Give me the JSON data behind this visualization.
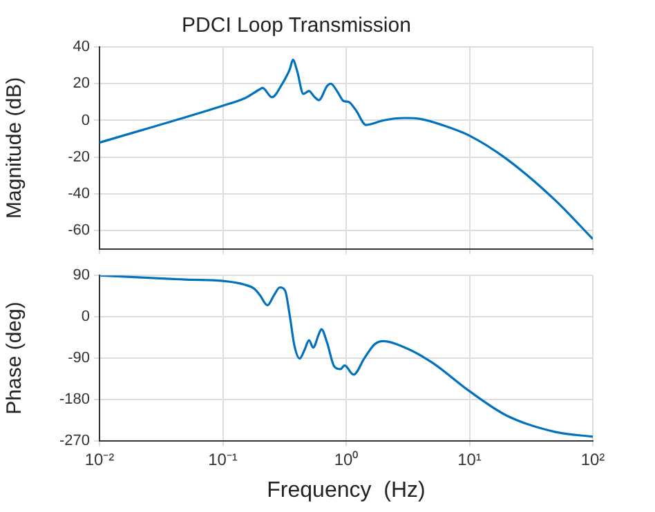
{
  "chart_data": [
    {
      "type": "line",
      "title": "PDCI Loop Transmission",
      "ylabel": "Magnitude (dB)",
      "log": "x",
      "grid": true,
      "tick_labels": "y",
      "marker": "none",
      "line_style": "solid",
      "xlim": [
        0.01,
        100
      ],
      "xticks": [
        {
          "value": 0.01,
          "label": null
        },
        {
          "value": 0.1,
          "label": null
        },
        {
          "value": 1,
          "label": null
        },
        {
          "value": 10,
          "label": null
        },
        {
          "value": 100,
          "label": null
        }
      ],
      "ylim": [
        -70,
        40
      ],
      "yticks": [
        -60,
        -40,
        -20,
        0,
        20,
        40
      ],
      "x": [
        0.01,
        0.1,
        0.15,
        0.2,
        0.21,
        0.25,
        0.3,
        0.35,
        0.37,
        0.4,
        0.45,
        0.5,
        0.55,
        0.6,
        0.7,
        0.75,
        0.85,
        0.95,
        1.05,
        1.2,
        1.45,
        1.6,
        2,
        3,
        4,
        6,
        10,
        20,
        50,
        100
      ],
      "series": [
        {
          "color": "#0072bd",
          "values": [
            -12.1,
            8,
            12,
            17,
            17.7,
            12.6,
            19.4,
            28,
            33,
            27,
            14.4,
            16,
            13,
            11,
            18.7,
            20,
            15.6,
            10.6,
            10,
            5.5,
            -2.5,
            -2,
            0,
            1.3,
            0.8,
            -2.5,
            -8.3,
            -21,
            -43.7,
            -64.6
          ]
        }
      ]
    },
    {
      "type": "line",
      "xlabel": "Frequency  (Hz)",
      "ylabel": "Phase (deg)",
      "log": "x",
      "grid": true,
      "marker": "none",
      "line_style": "solid",
      "xlim": [
        0.01,
        100
      ],
      "xticks": [
        {
          "value": 0.01,
          "label": "10⁻²"
        },
        {
          "value": 0.1,
          "label": "10⁻¹"
        },
        {
          "value": 1,
          "label": "10⁰"
        },
        {
          "value": 10,
          "label": "10¹"
        },
        {
          "value": 100,
          "label": "10²"
        }
      ],
      "ylim": [
        -270,
        90
      ],
      "yticks": [
        -270,
        -180,
        -90,
        0,
        90
      ],
      "x": [
        0.01,
        0.05,
        0.1,
        0.15,
        0.18,
        0.2,
        0.23,
        0.26,
        0.29,
        0.32,
        0.35,
        0.38,
        0.42,
        0.46,
        0.5,
        0.54,
        0.6,
        0.63,
        0.7,
        0.8,
        0.9,
        0.97,
        1.15,
        1.4,
        1.7,
        2,
        3,
        5,
        10,
        20,
        50,
        100
      ],
      "series": [
        {
          "color": "#0072bd",
          "values": [
            90,
            81,
            78,
            70,
            61,
            47,
            25,
            47,
            64,
            57,
            0,
            -62,
            -91,
            -72,
            -51,
            -67,
            -38,
            -27,
            -56,
            -108,
            -114,
            -106,
            -126,
            -91,
            -60,
            -53,
            -67,
            -100,
            -162,
            -215,
            -251,
            -261
          ]
        }
      ]
    }
  ]
}
